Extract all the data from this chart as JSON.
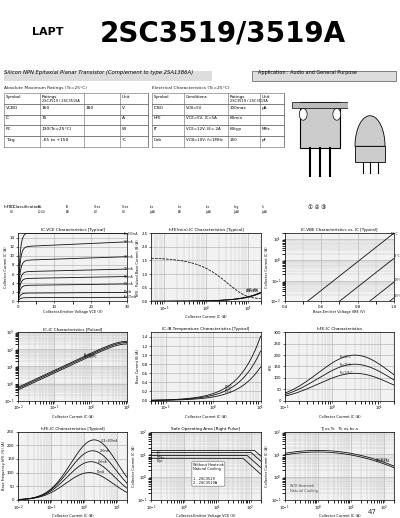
{
  "title_lapt": "LAPT",
  "title_model": "2SC3519/3519A",
  "subtitle": "Silicon NPN Epitaxial Planar Transistor (Complement to type 2SA1386A)",
  "application": "Application : Audio and General Purpose",
  "header_bg": "#c8c8c8",
  "page_bg": "#ffffff",
  "graph_bg": "#f2f2f2",
  "grid_color": "#c0c0c0",
  "curve_color": "#111111"
}
